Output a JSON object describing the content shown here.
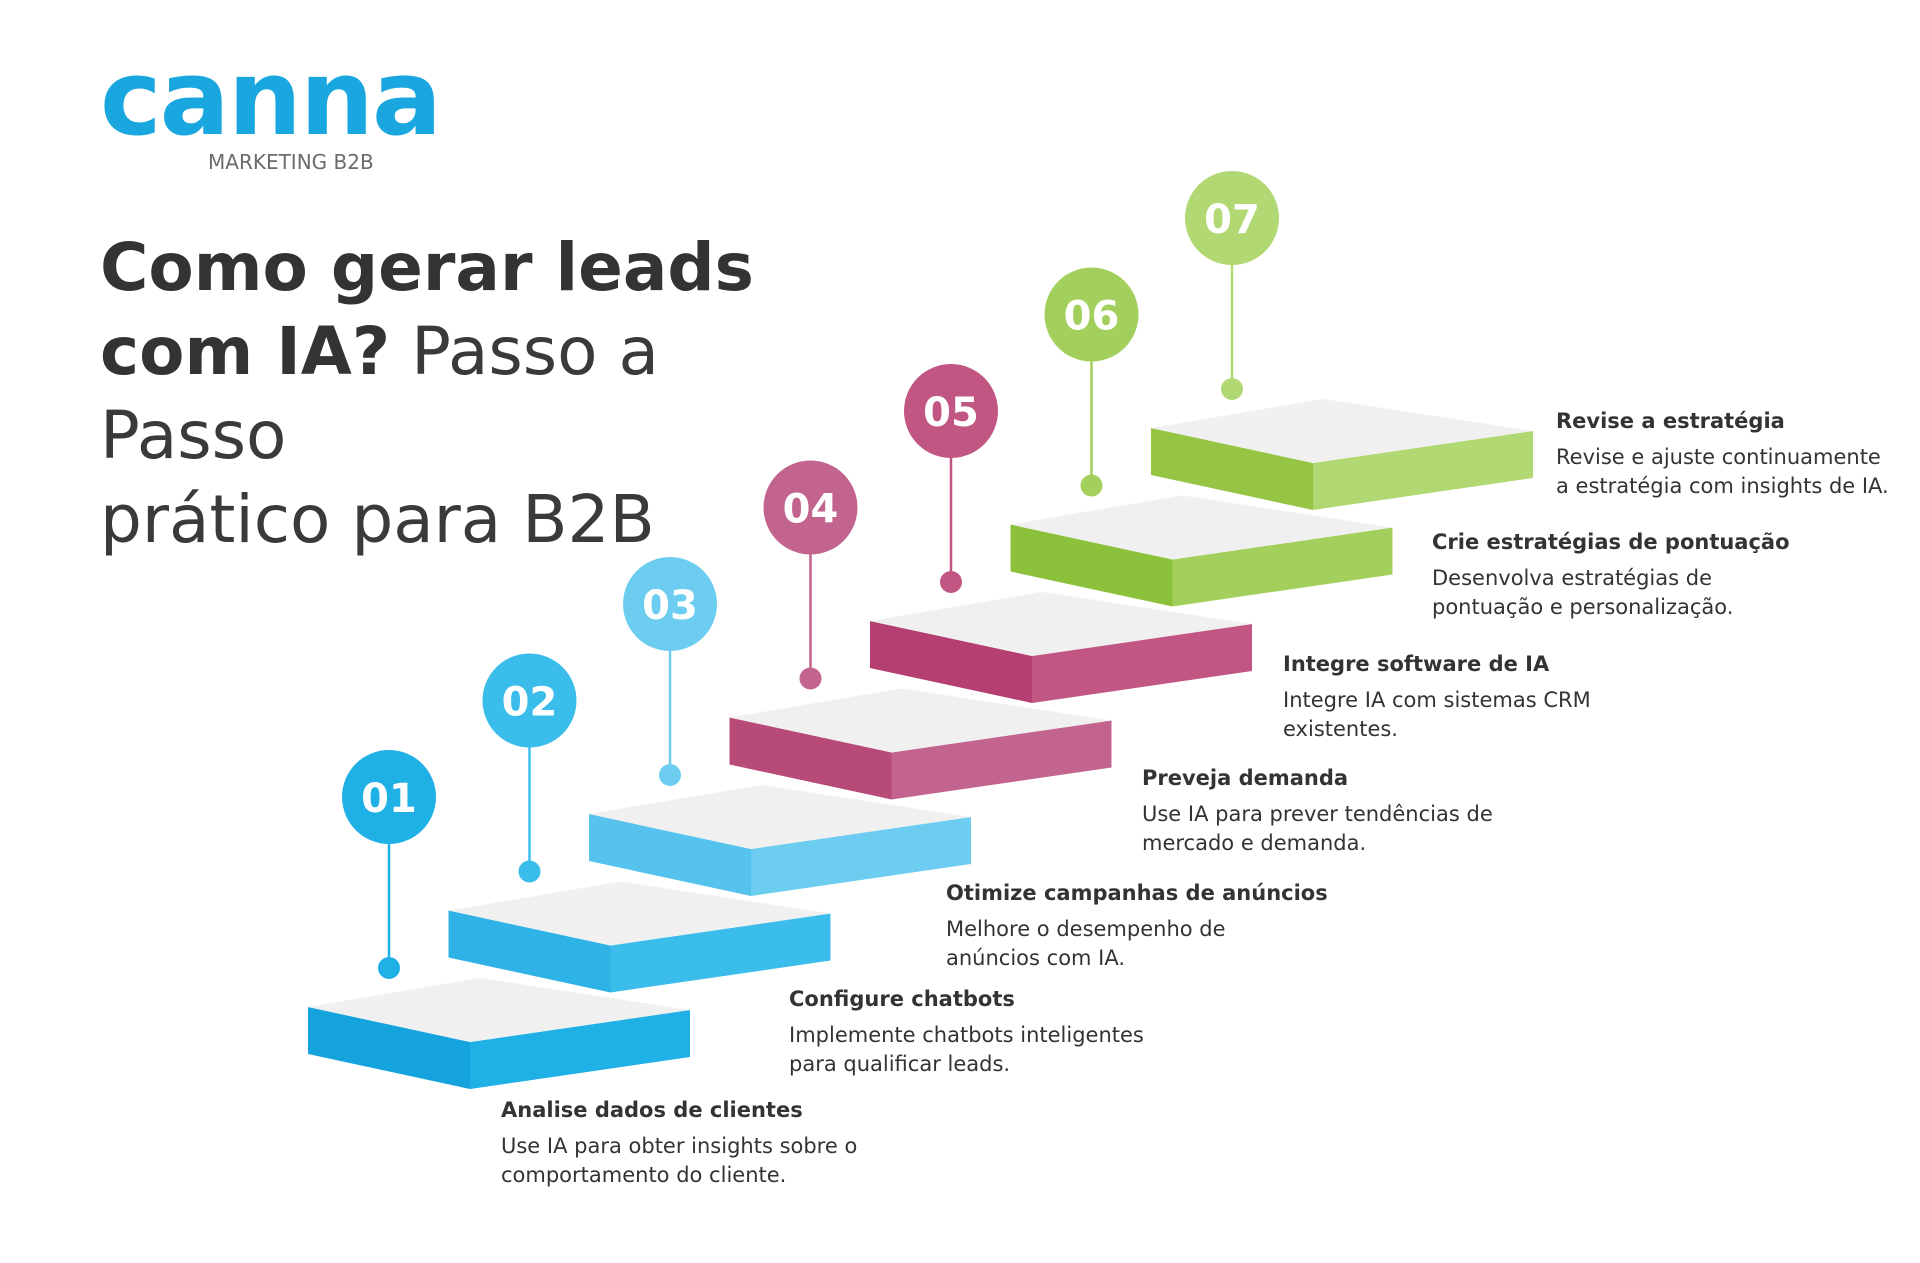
{
  "logo": {
    "word": "canna",
    "subtitle": "MARKETING B2B",
    "color": "#1aa7df",
    "subtitle_color": "#6b6b6b"
  },
  "title": {
    "bold_line1": "Como gerar leads",
    "bold_line2": "com IA?",
    "light_line2": " Passo a Passo",
    "light_line3": "prático para B2B"
  },
  "steps": [
    {
      "number": "01",
      "title": "Analise dados de clientes",
      "description": "Use IA para obter insights sobre o\ncomportamento do cliente.",
      "color": "#1fb0e6",
      "dark_color": "#15a3de"
    },
    {
      "number": "02",
      "title": "Configure chatbots",
      "description": "Implemente chatbots inteligentes\npara qualificar leads.",
      "color": "#3bbdeb",
      "dark_color": "#2fb3e6"
    },
    {
      "number": "03",
      "title": "Otimize campanhas de anúncios",
      "description": "Melhore o desempenho de\nanúncios com IA.",
      "color": "#6ccdf0",
      "dark_color": "#55c3ee"
    },
    {
      "number": "04",
      "title": "Preveja demanda",
      "description": "Use IA para prever tendências de\nmercado e demanda.",
      "color": "#c3648f",
      "dark_color": "#b84a78"
    },
    {
      "number": "05",
      "title": "Integre software de IA",
      "description": "Integre IA com sistemas CRM\nexistentes.",
      "color": "#c15683",
      "dark_color": "#b43f70"
    },
    {
      "number": "06",
      "title": "Crie estratégias de pontuação",
      "description": "Desenvolva estratégias de\npontuação e personalização.",
      "color": "#a3cf5c",
      "dark_color": "#8cc13b"
    },
    {
      "number": "07",
      "title": "Revise a estratégia",
      "description": "Revise e ajuste continuamente\na estratégia com insights de IA.",
      "color": "#b1d873",
      "dark_color": "#96c544"
    }
  ],
  "colors": {
    "step_top": "#f0f0f0",
    "text": "#333333"
  }
}
